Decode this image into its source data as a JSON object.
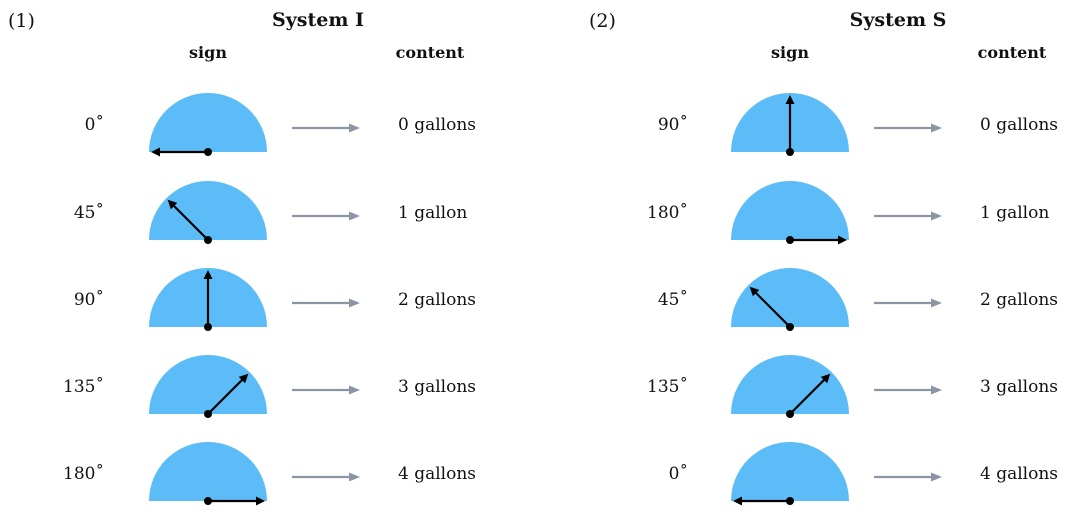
{
  "colors": {
    "gauge_fill": "#5bbcf7",
    "needle": "#000000",
    "arrow": "#8c95a3",
    "text": "#111111"
  },
  "systems": [
    {
      "number": "(1)",
      "title": "System I",
      "sign_header": "sign",
      "content_header": "content",
      "rows": [
        {
          "angle_label": "0˚",
          "needle_angle_deg": 0,
          "content": "0 gallons"
        },
        {
          "angle_label": "45˚",
          "needle_angle_deg": 45,
          "content": "1 gallon"
        },
        {
          "angle_label": "90˚",
          "needle_angle_deg": 90,
          "content": "2 gallons"
        },
        {
          "angle_label": "135˚",
          "needle_angle_deg": 135,
          "content": "3 gallons"
        },
        {
          "angle_label": "180˚",
          "needle_angle_deg": 180,
          "content": "4 gallons"
        }
      ]
    },
    {
      "number": "(2)",
      "title": "System S",
      "sign_header": "sign",
      "content_header": "content",
      "rows": [
        {
          "angle_label": "90˚",
          "needle_angle_deg": 90,
          "content": "0 gallons"
        },
        {
          "angle_label": "180˚",
          "needle_angle_deg": 180,
          "content": "1 gallon"
        },
        {
          "angle_label": "45˚",
          "needle_angle_deg": 45,
          "content": "2 gallons"
        },
        {
          "angle_label": "135˚",
          "needle_angle_deg": 135,
          "content": "3 gallons"
        },
        {
          "angle_label": "0˚",
          "needle_angle_deg": 0,
          "content": "4 gallons"
        }
      ]
    }
  ]
}
